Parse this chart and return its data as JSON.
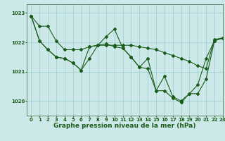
{
  "title": "Graphe pression niveau de la mer (hPa)",
  "bg_color": "#cce8e8",
  "grid_color": "#99cccc",
  "line_color": "#1a5c1a",
  "xlim": [
    -0.5,
    23
  ],
  "ylim": [
    1019.5,
    1023.3
  ],
  "yticks": [
    1020,
    1021,
    1022,
    1023
  ],
  "xticks": [
    0,
    1,
    2,
    3,
    4,
    5,
    6,
    7,
    8,
    9,
    10,
    11,
    12,
    13,
    14,
    15,
    16,
    17,
    18,
    19,
    20,
    21,
    22,
    23
  ],
  "series1": [
    1022.9,
    1022.55,
    1022.55,
    1022.05,
    1021.75,
    1021.75,
    1021.75,
    1021.85,
    1021.9,
    1021.9,
    1021.9,
    1021.9,
    1021.9,
    1021.85,
    1021.8,
    1021.75,
    1021.65,
    1021.55,
    1021.45,
    1021.35,
    1021.2,
    1021.1,
    1022.1,
    1022.15
  ],
  "series2": [
    1022.9,
    1022.05,
    1021.75,
    1021.5,
    1021.45,
    1021.3,
    1021.05,
    1021.85,
    1021.9,
    1022.2,
    1022.45,
    1021.8,
    1021.5,
    1021.15,
    1021.45,
    1020.35,
    1020.85,
    1020.15,
    1020.0,
    1020.25,
    1020.55,
    1021.45,
    1022.05,
    1022.15
  ],
  "series3": [
    1022.9,
    1022.05,
    1021.75,
    1021.5,
    1021.45,
    1021.3,
    1021.05,
    1021.45,
    1021.9,
    1021.95,
    1021.85,
    1021.8,
    1021.5,
    1021.15,
    1021.1,
    1020.35,
    1020.35,
    1020.1,
    1019.95,
    1020.25,
    1020.25,
    1020.75,
    1022.05,
    1022.15
  ],
  "marker": "D",
  "markersize": 2.0,
  "linewidth": 0.8,
  "title_fontsize": 6.5,
  "tick_fontsize": 5.0
}
